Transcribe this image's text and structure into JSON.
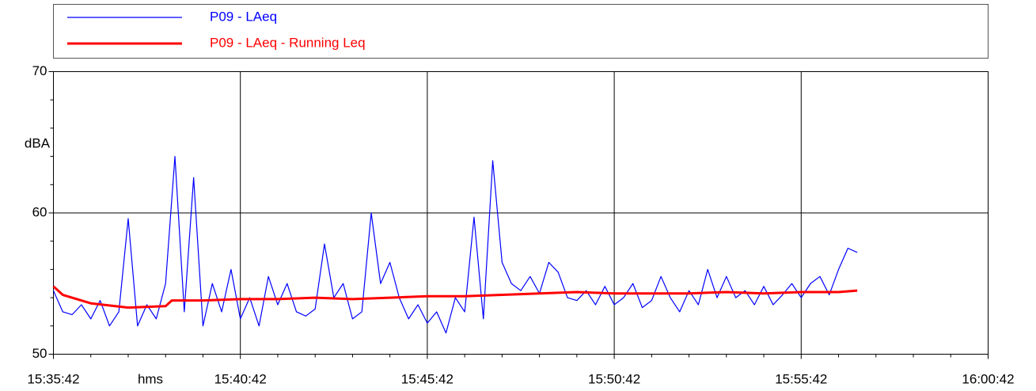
{
  "chart_data": {
    "type": "line",
    "xlabel": "hms",
    "ylabel": "dBA",
    "x": [
      56142,
      56157,
      56172,
      56187,
      56202,
      56217,
      56232,
      56247,
      56262,
      56277,
      56292,
      56307,
      56322,
      56337,
      56352,
      56367,
      56382,
      56397,
      56412,
      56427,
      56442,
      56457,
      56472,
      56487,
      56502,
      56517,
      56532,
      56547,
      56562,
      56577,
      56592,
      56607,
      56622,
      56637,
      56652,
      56667,
      56682,
      56697,
      56712,
      56727,
      56742,
      56757,
      56772,
      56787,
      56802,
      56817,
      56832,
      56847,
      56862,
      56877,
      56892,
      56907,
      56922,
      56937,
      56952,
      56967,
      56982,
      56997,
      57012,
      57027,
      57042,
      57057,
      57072,
      57087,
      57102,
      57117,
      57132,
      57147,
      57162,
      57177,
      57192,
      57207,
      57222,
      57237,
      57252,
      57267,
      57282,
      57297,
      57312,
      57327,
      57342,
      57357,
      57372,
      57387,
      57402,
      57417,
      57432
    ],
    "series": [
      {
        "name": "P09 - LAeq",
        "color": "#0000ff",
        "width": 1.2,
        "values": [
          54.5,
          53,
          52.8,
          53.5,
          52.5,
          53.8,
          52,
          53,
          59.6,
          52,
          53.5,
          52.5,
          55,
          64,
          53,
          62.5,
          52,
          55,
          53,
          56,
          52.5,
          54,
          52,
          55.5,
          53.5,
          55,
          53,
          52.7,
          53.2,
          57.8,
          54,
          55,
          52.5,
          53,
          60,
          55,
          56.5,
          54,
          52.5,
          53.5,
          52.2,
          53,
          51.5,
          54,
          53,
          59.7,
          52.5,
          63.7,
          56.5,
          55,
          54.5,
          55.5,
          54.3,
          56.5,
          55.8,
          54,
          53.8,
          54.5,
          53.5,
          54.8,
          53.5,
          54,
          55,
          53.3,
          53.8,
          55.5,
          54,
          53,
          54.5,
          53.5,
          56,
          54,
          55.5,
          54,
          54.5,
          53.5,
          54.8,
          53.5,
          54.2,
          55,
          54,
          55,
          55.5,
          54.2,
          56,
          57.5,
          57.2
        ]
      },
      {
        "name": "P09 - LAeq - Running Leq",
        "color": "#ff0000",
        "width": 3,
        "x": [
          56142,
          56157,
          56202,
          56262,
          56322,
          56332,
          56382,
          56442,
          56502,
          56562,
          56622,
          56682,
          56742,
          56802,
          56862,
          56922,
          56982,
          57042,
          57102,
          57162,
          57222,
          57282,
          57342,
          57402,
          57432
        ],
        "values": [
          54.8,
          54.2,
          53.6,
          53.3,
          53.4,
          53.8,
          53.8,
          53.9,
          53.9,
          54.0,
          53.9,
          54.0,
          54.1,
          54.1,
          54.2,
          54.3,
          54.4,
          54.3,
          54.3,
          54.3,
          54.4,
          54.3,
          54.4,
          54.4,
          54.5
        ]
      }
    ],
    "xlim": [
      56142,
      57642
    ],
    "xticks": [
      {
        "value": 56142,
        "label": "15:35:42"
      },
      {
        "value": 56442,
        "label": "15:40:42"
      },
      {
        "value": 56742,
        "label": "15:45:42"
      },
      {
        "value": 57042,
        "label": "15:50:42"
      },
      {
        "value": 57342,
        "label": "15:55:42"
      },
      {
        "value": 57642,
        "label": "16:00:42"
      }
    ],
    "xminorticks": [
      56202,
      56262,
      56322,
      56382,
      56502,
      56562,
      56622,
      56682,
      56802,
      56862,
      56922,
      56982,
      57102,
      57162,
      57222,
      57282,
      57402,
      57462,
      57522,
      57582
    ],
    "ylim": [
      50,
      70
    ],
    "yticks": [
      50,
      60,
      70
    ],
    "yminorticks": [
      52,
      54,
      56,
      58,
      62,
      64,
      66,
      68
    ],
    "grid": true
  }
}
